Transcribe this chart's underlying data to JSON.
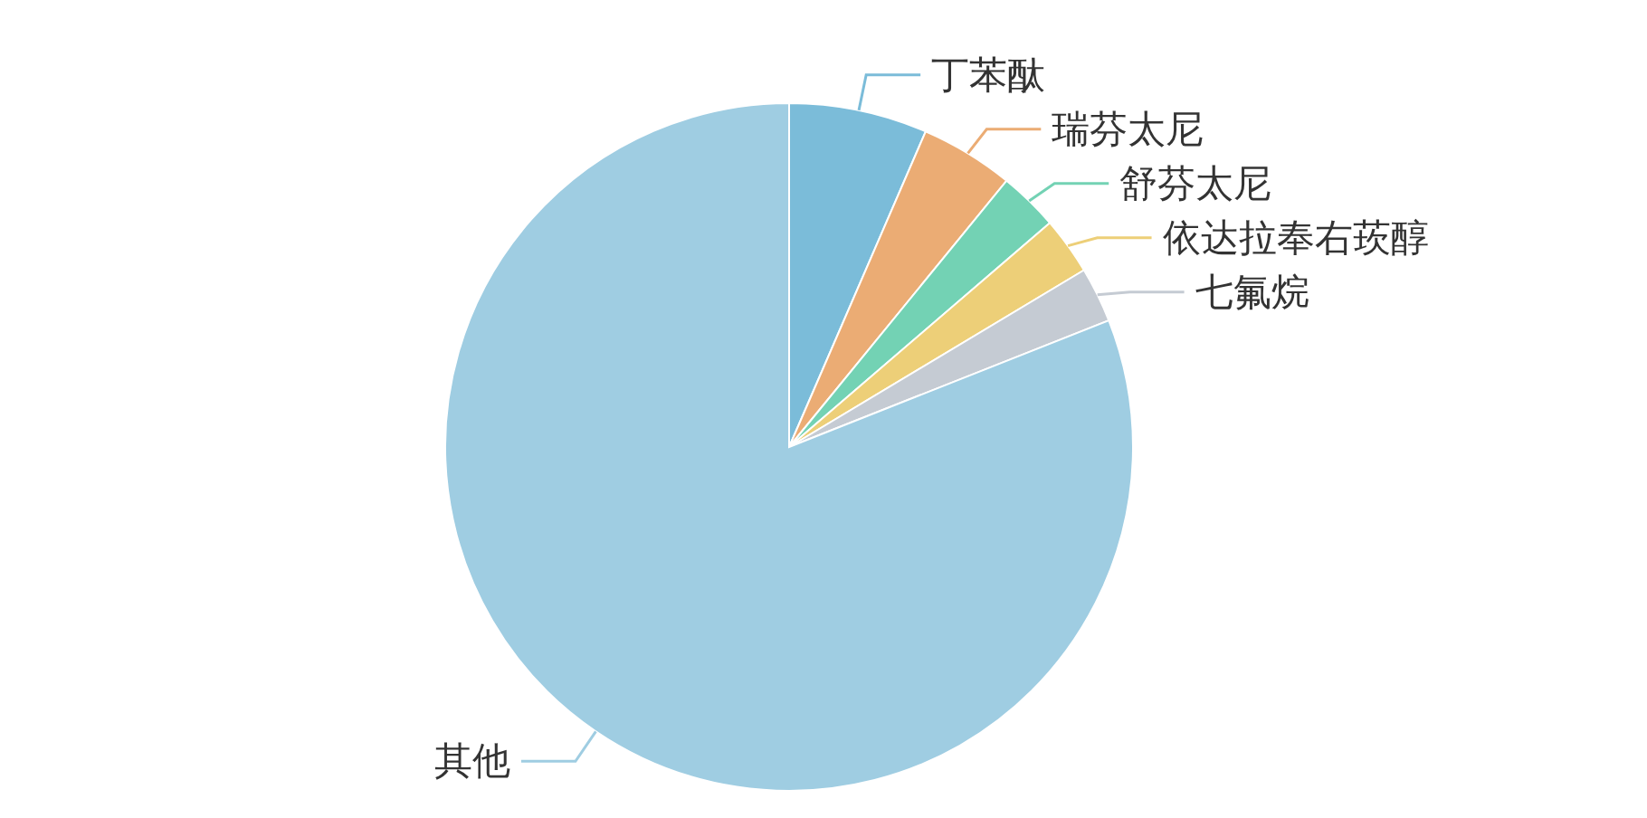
{
  "chart_data": {
    "type": "pie",
    "categories": [
      "丁苯酞",
      "瑞芬太尼",
      "舒芬太尼",
      "依达拉奉右莰醇",
      "七氟烷",
      "其他"
    ],
    "values": [
      6.5,
      4.4,
      2.8,
      2.7,
      2.6,
      81.0
    ],
    "colors": [
      "#7bbcd9",
      "#ebac74",
      "#73d2b4",
      "#edcf78",
      "#c5cbd3",
      "#9fcde2"
    ]
  }
}
